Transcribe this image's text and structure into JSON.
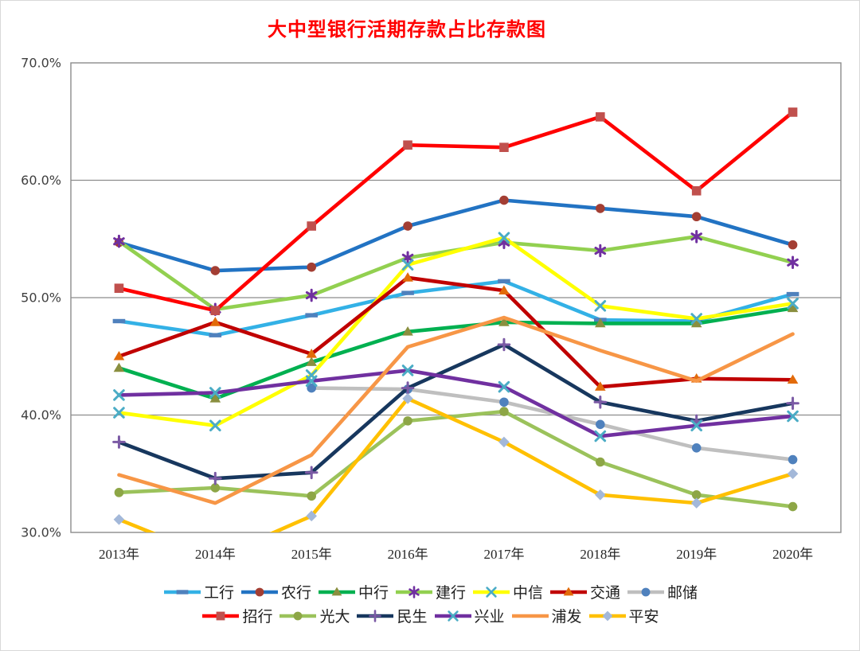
{
  "frame_border_color": "#d9d9d9",
  "chart_data": {
    "type": "line",
    "title": "大中型银行活期存款占比存款图",
    "title_color": "#FF0000",
    "categories": [
      "2013年",
      "2014年",
      "2015年",
      "2016年",
      "2017年",
      "2018年",
      "2019年",
      "2020年"
    ],
    "xlabel": "",
    "ylabel": "",
    "ylim": [
      30,
      70
    ],
    "yticks": [
      {
        "value": 30,
        "label": "30.0%"
      },
      {
        "value": 40,
        "label": "40.0%"
      },
      {
        "value": 50,
        "label": "50.0%"
      },
      {
        "value": 60,
        "label": "60.0%"
      },
      {
        "value": 70,
        "label": "70.0%"
      }
    ],
    "grid": "horizontal",
    "grid_color": "#8c8c8c",
    "legend_position": "bottom",
    "legend_rows": [
      [
        "工行",
        "农行",
        "中行",
        "建行",
        "中信",
        "交通",
        "邮储"
      ],
      [
        "招行",
        "光大",
        "民生",
        "兴业",
        "浦发",
        "平安"
      ]
    ],
    "series": [
      {
        "name": "工行",
        "color": "#33B1E6",
        "marker": "dash",
        "marker_color": "#4F81BD",
        "values": [
          48.0,
          46.8,
          48.5,
          50.4,
          51.4,
          48.1,
          48.0,
          50.3
        ]
      },
      {
        "name": "农行",
        "color": "#2273C3",
        "marker": "circle",
        "marker_color": "#A33E33",
        "values": [
          54.7,
          52.3,
          52.6,
          56.1,
          58.3,
          57.6,
          56.9,
          54.5
        ]
      },
      {
        "name": "中行",
        "color": "#00B050",
        "marker": "triangle",
        "marker_color": "#8A8F3F",
        "values": [
          44.0,
          41.4,
          44.5,
          47.1,
          47.9,
          47.8,
          47.8,
          49.1
        ]
      },
      {
        "name": "建行",
        "color": "#92D050",
        "marker": "asterisk",
        "marker_color": "#7030A0",
        "values": [
          54.8,
          49.0,
          50.2,
          53.4,
          54.7,
          54.0,
          55.2,
          53.0
        ]
      },
      {
        "name": "中信",
        "color": "#FFFF00",
        "marker": "x",
        "marker_color": "#4BACC6",
        "values": [
          40.2,
          39.1,
          43.4,
          52.8,
          55.1,
          49.3,
          48.2,
          49.5
        ]
      },
      {
        "name": "交通",
        "color": "#C00000",
        "marker": "triangle",
        "marker_color": "#E26B0A",
        "values": [
          45.0,
          47.9,
          45.2,
          51.7,
          50.6,
          42.4,
          43.1,
          43.0
        ]
      },
      {
        "name": "邮储",
        "color": "#BFBFBF",
        "marker": "circle",
        "marker_color": "#4F81BD",
        "values": [
          null,
          null,
          42.3,
          42.2,
          41.1,
          39.2,
          37.2,
          36.2
        ]
      },
      {
        "name": "招行",
        "color": "#FF0000",
        "marker": "square",
        "marker_color": "#C0504D",
        "values": [
          50.8,
          48.9,
          56.1,
          63.0,
          62.8,
          65.4,
          59.1,
          65.8
        ]
      },
      {
        "name": "光大",
        "color": "#9BC25B",
        "marker": "circle",
        "marker_color": "#8DA646",
        "values": [
          33.4,
          33.8,
          33.1,
          39.5,
          40.3,
          36.0,
          33.2,
          32.2
        ]
      },
      {
        "name": "民生",
        "color": "#17375E",
        "marker": "plus",
        "marker_color": "#7B5AA5",
        "values": [
          37.7,
          34.6,
          35.1,
          42.3,
          46.0,
          41.1,
          39.5,
          41.0
        ]
      },
      {
        "name": "兴业",
        "color": "#7030A0",
        "marker": "x",
        "marker_color": "#4AACC5",
        "values": [
          41.7,
          41.9,
          42.9,
          43.8,
          42.4,
          38.2,
          39.1,
          39.9
        ]
      },
      {
        "name": "浦发",
        "color": "#F79646",
        "marker": "none",
        "marker_color": "#F79646",
        "values": [
          34.9,
          32.5,
          36.6,
          45.8,
          48.3,
          45.5,
          42.9,
          46.9
        ]
      },
      {
        "name": "平安",
        "color": "#FFC000",
        "marker": "diamond",
        "marker_color": "#A3B8D9",
        "values": [
          31.1,
          27.8,
          31.4,
          41.4,
          37.7,
          33.2,
          32.5,
          35.0
        ]
      }
    ]
  }
}
